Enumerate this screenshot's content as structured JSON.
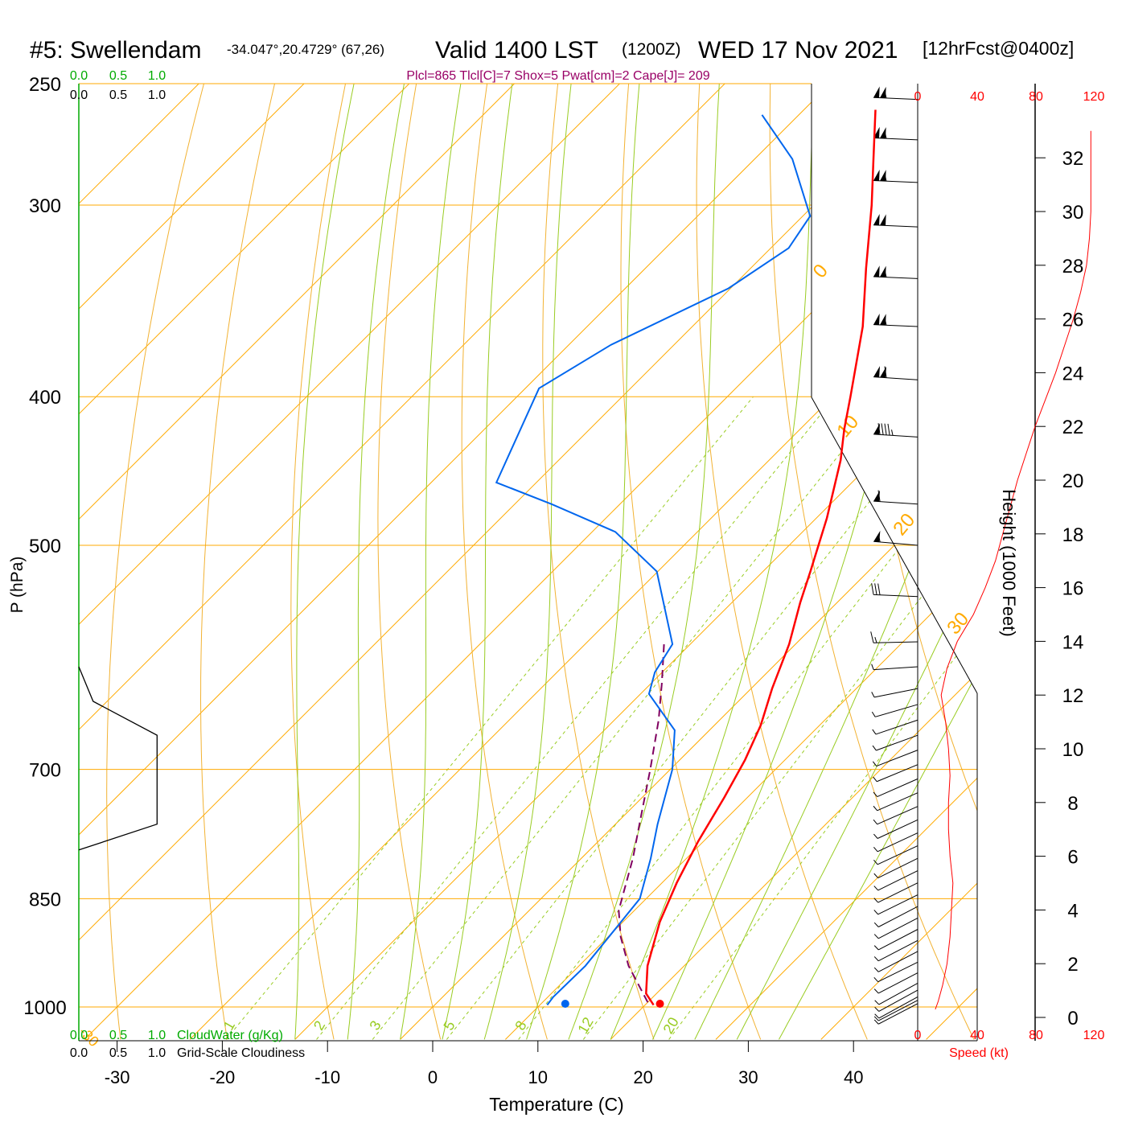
{
  "header": {
    "station": "#5: Swellendam",
    "location": "-34.047°,20.4729° (67,26)",
    "valid": "Valid 1400 LST",
    "zulu": "(1200Z)",
    "date": "WED 17 Nov 2021",
    "forecast": "[12hrFcst@0400z]",
    "indices": "Plcl=865 Tlcl[C]=7 Shox=5 Pwat[cm]=2 Cape[J]= 209"
  },
  "colors": {
    "temperature": "#ff0000",
    "dewpoint": "#0066ee",
    "parcel": "#800060",
    "isotherm": "#ffaa00",
    "dry_adiabat": "#f2b233",
    "moist_adiabat": "#99cc22",
    "mixing_ratio": "#99cc22",
    "cloud_scale": "#00aa00",
    "indices_text": "#990066",
    "speed": "#ff0000"
  },
  "chart_data": {
    "type": "skew-t log-p sounding",
    "xlabel": "Temperature (C)",
    "ylabel": "P (hPa)",
    "y2label": "Height (1000 Feet)",
    "x_ticks": [
      -30,
      -20,
      -10,
      0,
      10,
      20,
      30,
      40
    ],
    "p_ticks": [
      250,
      300,
      400,
      500,
      700,
      850,
      1000
    ],
    "height_ticks": [
      "0",
      "2",
      "4",
      "6",
      "8",
      "10",
      "12",
      "14",
      "16",
      "18",
      "20",
      "22",
      "24",
      "26",
      "28",
      "30",
      "32"
    ],
    "height_unit": "kft",
    "isotherm_labels": [
      {
        "t": 10,
        "label": "10"
      },
      {
        "t": 0,
        "label": "0"
      },
      {
        "t": -10,
        "label": "-10"
      },
      {
        "t": -20,
        "label": "-20"
      },
      {
        "t": -30,
        "label": "-30"
      }
    ],
    "dry_adiabat_labels": [
      {
        "theta": 0,
        "label": "0"
      },
      {
        "theta": 10,
        "label": "10"
      },
      {
        "theta": 20,
        "label": "20"
      },
      {
        "theta": 30,
        "label": "30"
      }
    ],
    "mixing_ratio_labels": [
      "1",
      "2",
      "3",
      "5",
      "8",
      "12",
      "20"
    ],
    "cloud_scale": {
      "cloudwater_ticks": [
        "0.0",
        "0.5",
        "1.0"
      ],
      "cloudiness_ticks": [
        "0.0",
        "0.5",
        "1.0"
      ],
      "cloudwater_label": "CloudWater (g/Kg)",
      "cloudiness_label": "Grid-Scale Cloudiness",
      "cloudiness_profile": [
        {
          "p": 600,
          "c": 0.0
        },
        {
          "p": 632,
          "c": 0.13
        },
        {
          "p": 665,
          "c": 0.71
        },
        {
          "p": 760,
          "c": 0.71
        },
        {
          "p": 790,
          "c": 0.0
        }
      ]
    },
    "speed_axis": {
      "label": "Speed (kt)",
      "ticks": [
        "0",
        "40",
        "80",
        "120"
      ]
    },
    "temperature": [
      {
        "p": 997,
        "t": 20.8
      },
      {
        "p": 980,
        "t": 19.0
      },
      {
        "p": 940,
        "t": 16.5
      },
      {
        "p": 880,
        "t": 13.5
      },
      {
        "p": 830,
        "t": 11.4
      },
      {
        "p": 780,
        "t": 9.5
      },
      {
        "p": 730,
        "t": 7.8
      },
      {
        "p": 690,
        "t": 6.2
      },
      {
        "p": 655,
        "t": 4.4
      },
      {
        "p": 620,
        "t": 2.0
      },
      {
        "p": 580,
        "t": -0.6
      },
      {
        "p": 545,
        "t": -3.5
      },
      {
        "p": 520,
        "t": -5.5
      },
      {
        "p": 480,
        "t": -9.0
      },
      {
        "p": 440,
        "t": -13.2
      },
      {
        "p": 420,
        "t": -15.8
      },
      {
        "p": 400,
        "t": -18.3
      },
      {
        "p": 360,
        "t": -23.8
      },
      {
        "p": 330,
        "t": -29.0
      },
      {
        "p": 300,
        "t": -34.5
      },
      {
        "p": 280,
        "t": -38.7
      },
      {
        "p": 260,
        "t": -43.2
      }
    ],
    "dewpoint": [
      {
        "p": 997,
        "t": 10.7
      },
      {
        "p": 985,
        "t": 10.5
      },
      {
        "p": 940,
        "t": 10.6
      },
      {
        "p": 850,
        "t": 9.4
      },
      {
        "p": 800,
        "t": 6.6
      },
      {
        "p": 760,
        "t": 4.0
      },
      {
        "p": 700,
        "t": 0.2
      },
      {
        "p": 660,
        "t": -3.3
      },
      {
        "p": 625,
        "t": -9.2
      },
      {
        "p": 605,
        "t": -10.7
      },
      {
        "p": 580,
        "t": -11.7
      },
      {
        "p": 520,
        "t": -20.1
      },
      {
        "p": 490,
        "t": -27.8
      },
      {
        "p": 470,
        "t": -36.5
      },
      {
        "p": 455,
        "t": -43.8
      },
      {
        "p": 395,
        "t": -48.7
      },
      {
        "p": 370,
        "t": -46.0
      },
      {
        "p": 340,
        "t": -40.2
      },
      {
        "p": 320,
        "t": -38.3
      },
      {
        "p": 305,
        "t": -39.3
      },
      {
        "p": 280,
        "t": -46.4
      },
      {
        "p": 262,
        "t": -53.5
      }
    ],
    "parcel": [
      {
        "p": 993,
        "t": 20.0
      },
      {
        "p": 940,
        "t": 14.7
      },
      {
        "p": 900,
        "t": 11.2
      },
      {
        "p": 865,
        "t": 8.5
      },
      {
        "p": 800,
        "t": 4.9
      },
      {
        "p": 750,
        "t": 1.6
      },
      {
        "p": 700,
        "t": -1.9
      },
      {
        "p": 650,
        "t": -5.8
      },
      {
        "p": 615,
        "t": -9.0
      },
      {
        "p": 580,
        "t": -12.5
      }
    ],
    "surface": {
      "p": 1000,
      "t": 21.6,
      "td": 12.6
    },
    "wind_barbs": [
      {
        "p": 995,
        "spd": 7,
        "dir": 160
      },
      {
        "p": 990,
        "spd": 8,
        "dir": 160
      },
      {
        "p": 985,
        "spd": 9,
        "dir": 155
      },
      {
        "p": 975,
        "spd": 9,
        "dir": 155
      },
      {
        "p": 965,
        "spd": 9,
        "dir": 155
      },
      {
        "p": 950,
        "spd": 9,
        "dir": 160
      },
      {
        "p": 935,
        "spd": 9,
        "dir": 165
      },
      {
        "p": 920,
        "spd": 9,
        "dir": 160
      },
      {
        "p": 905,
        "spd": 9,
        "dir": 160
      },
      {
        "p": 890,
        "spd": 9,
        "dir": 160
      },
      {
        "p": 875,
        "spd": 9,
        "dir": 160
      },
      {
        "p": 860,
        "spd": 9,
        "dir": 160
      },
      {
        "p": 845,
        "spd": 8,
        "dir": 165
      },
      {
        "p": 830,
        "spd": 7,
        "dir": 165
      },
      {
        "p": 815,
        "spd": 7,
        "dir": 165
      },
      {
        "p": 800,
        "spd": 7,
        "dir": 165
      },
      {
        "p": 785,
        "spd": 7,
        "dir": 170
      },
      {
        "p": 770,
        "spd": 7,
        "dir": 170
      },
      {
        "p": 755,
        "spd": 7,
        "dir": 170
      },
      {
        "p": 740,
        "spd": 7,
        "dir": 175
      },
      {
        "p": 725,
        "spd": 7,
        "dir": 175
      },
      {
        "p": 710,
        "spd": 8,
        "dir": 175
      },
      {
        "p": 695,
        "spd": 8,
        "dir": 180
      },
      {
        "p": 680,
        "spd": 8,
        "dir": 185
      },
      {
        "p": 665,
        "spd": 8,
        "dir": 190
      },
      {
        "p": 650,
        "spd": 8,
        "dir": 195
      },
      {
        "p": 635,
        "spd": 7,
        "dir": 205
      },
      {
        "p": 620,
        "spd": 7,
        "dir": 225
      },
      {
        "p": 600,
        "spd": 8,
        "dir": 255
      },
      {
        "p": 578,
        "spd": 15,
        "dir": 265
      },
      {
        "p": 540,
        "spd": 30,
        "dir": 280
      },
      {
        "p": 500,
        "spd": 55,
        "dir": 290
      },
      {
        "p": 470,
        "spd": 60,
        "dir": 285
      },
      {
        "p": 425,
        "spd": 95,
        "dir": 285
      },
      {
        "p": 390,
        "spd": 110,
        "dir": 285
      },
      {
        "p": 360,
        "spd": 105,
        "dir": 280
      },
      {
        "p": 335,
        "spd": 105,
        "dir": 280
      },
      {
        "p": 310,
        "spd": 100,
        "dir": 280
      },
      {
        "p": 290,
        "spd": 105,
        "dir": 280
      },
      {
        "p": 272,
        "spd": 105,
        "dir": 280
      },
      {
        "p": 256,
        "spd": 105,
        "dir": 280
      }
    ],
    "speed_profile": [
      {
        "h": 0.3,
        "s": 12
      },
      {
        "h": 0.6,
        "s": 14
      },
      {
        "h": 1.2,
        "s": 17
      },
      {
        "h": 2.0,
        "s": 20
      },
      {
        "h": 3.0,
        "s": 22
      },
      {
        "h": 4.0,
        "s": 23
      },
      {
        "h": 5.0,
        "s": 24
      },
      {
        "h": 6.0,
        "s": 22
      },
      {
        "h": 7.0,
        "s": 21
      },
      {
        "h": 8.0,
        "s": 21
      },
      {
        "h": 9.0,
        "s": 22
      },
      {
        "h": 10.0,
        "s": 21
      },
      {
        "h": 11.0,
        "s": 19
      },
      {
        "h": 12.0,
        "s": 16
      },
      {
        "h": 13.0,
        "s": 20
      },
      {
        "h": 14.0,
        "s": 27
      },
      {
        "h": 15.0,
        "s": 38
      },
      {
        "h": 16.0,
        "s": 46
      },
      {
        "h": 17.0,
        "s": 53
      },
      {
        "h": 18.0,
        "s": 58
      },
      {
        "h": 19.0,
        "s": 63
      },
      {
        "h": 20.0,
        "s": 68
      },
      {
        "h": 21.0,
        "s": 74
      },
      {
        "h": 22.0,
        "s": 80
      },
      {
        "h": 23.0,
        "s": 87
      },
      {
        "h": 24.0,
        "s": 94
      },
      {
        "h": 25.0,
        "s": 100
      },
      {
        "h": 26.0,
        "s": 106
      },
      {
        "h": 27.0,
        "s": 111
      },
      {
        "h": 28.0,
        "s": 115
      },
      {
        "h": 29.0,
        "s": 117
      },
      {
        "h": 30.0,
        "s": 118
      },
      {
        "h": 31.0,
        "s": 118
      },
      {
        "h": 32.0,
        "s": 118
      },
      {
        "h": 33.0,
        "s": 118
      }
    ]
  }
}
